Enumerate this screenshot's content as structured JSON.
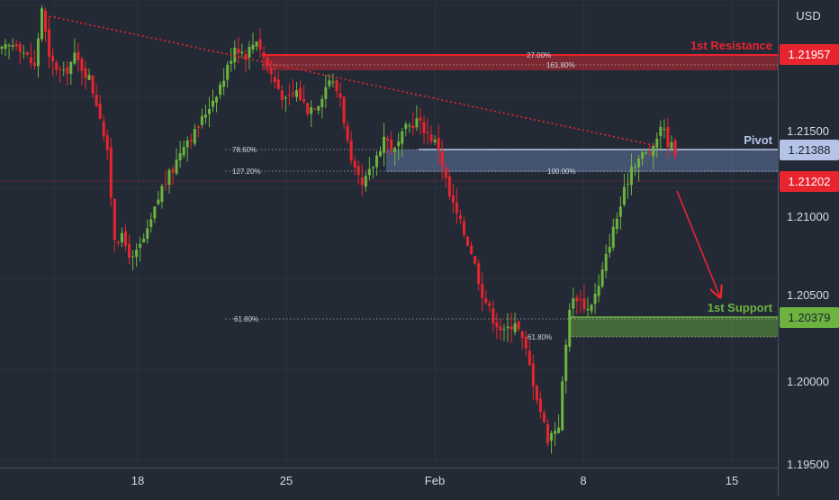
{
  "chart_data": {
    "type": "candlestick",
    "currency_label": "USD",
    "y_axis": {
      "range": [
        1.1946,
        1.2203
      ],
      "ticks": [
        "1.20000",
        "1.20500",
        "1.21000",
        "1.21500"
      ],
      "partial_ticks": [
        "1.19500"
      ]
    },
    "x_axis": {
      "ticks": [
        "18",
        "25",
        "Feb",
        "8",
        "15"
      ]
    },
    "price_tags": [
      {
        "value": "1.21957",
        "color": "#e8252f"
      },
      {
        "value": "1.21388",
        "color": "#b5c4e6"
      },
      {
        "value": "1.21202",
        "color": "#e8252f"
      },
      {
        "value": "1.20379",
        "color": "#6db33f"
      }
    ],
    "levels": [
      {
        "label": "1st Resistance",
        "value": 1.21957,
        "color": "#e8252f"
      },
      {
        "label": "Pivot",
        "value": 1.21388,
        "color": "#b5c4e6"
      },
      {
        "label": "1st Support",
        "value": 1.20379,
        "color": "#6db33f"
      }
    ],
    "current_price": 1.21202,
    "fib_labels": [
      "27.00%",
      "161.80%",
      "78.60%",
      "127.20%",
      "100.00%",
      "61.80%",
      "61.80%"
    ],
    "colors": {
      "up": "#6db33f",
      "down": "#e8252f",
      "background": "#232a36",
      "grid": "#3a4150"
    }
  }
}
